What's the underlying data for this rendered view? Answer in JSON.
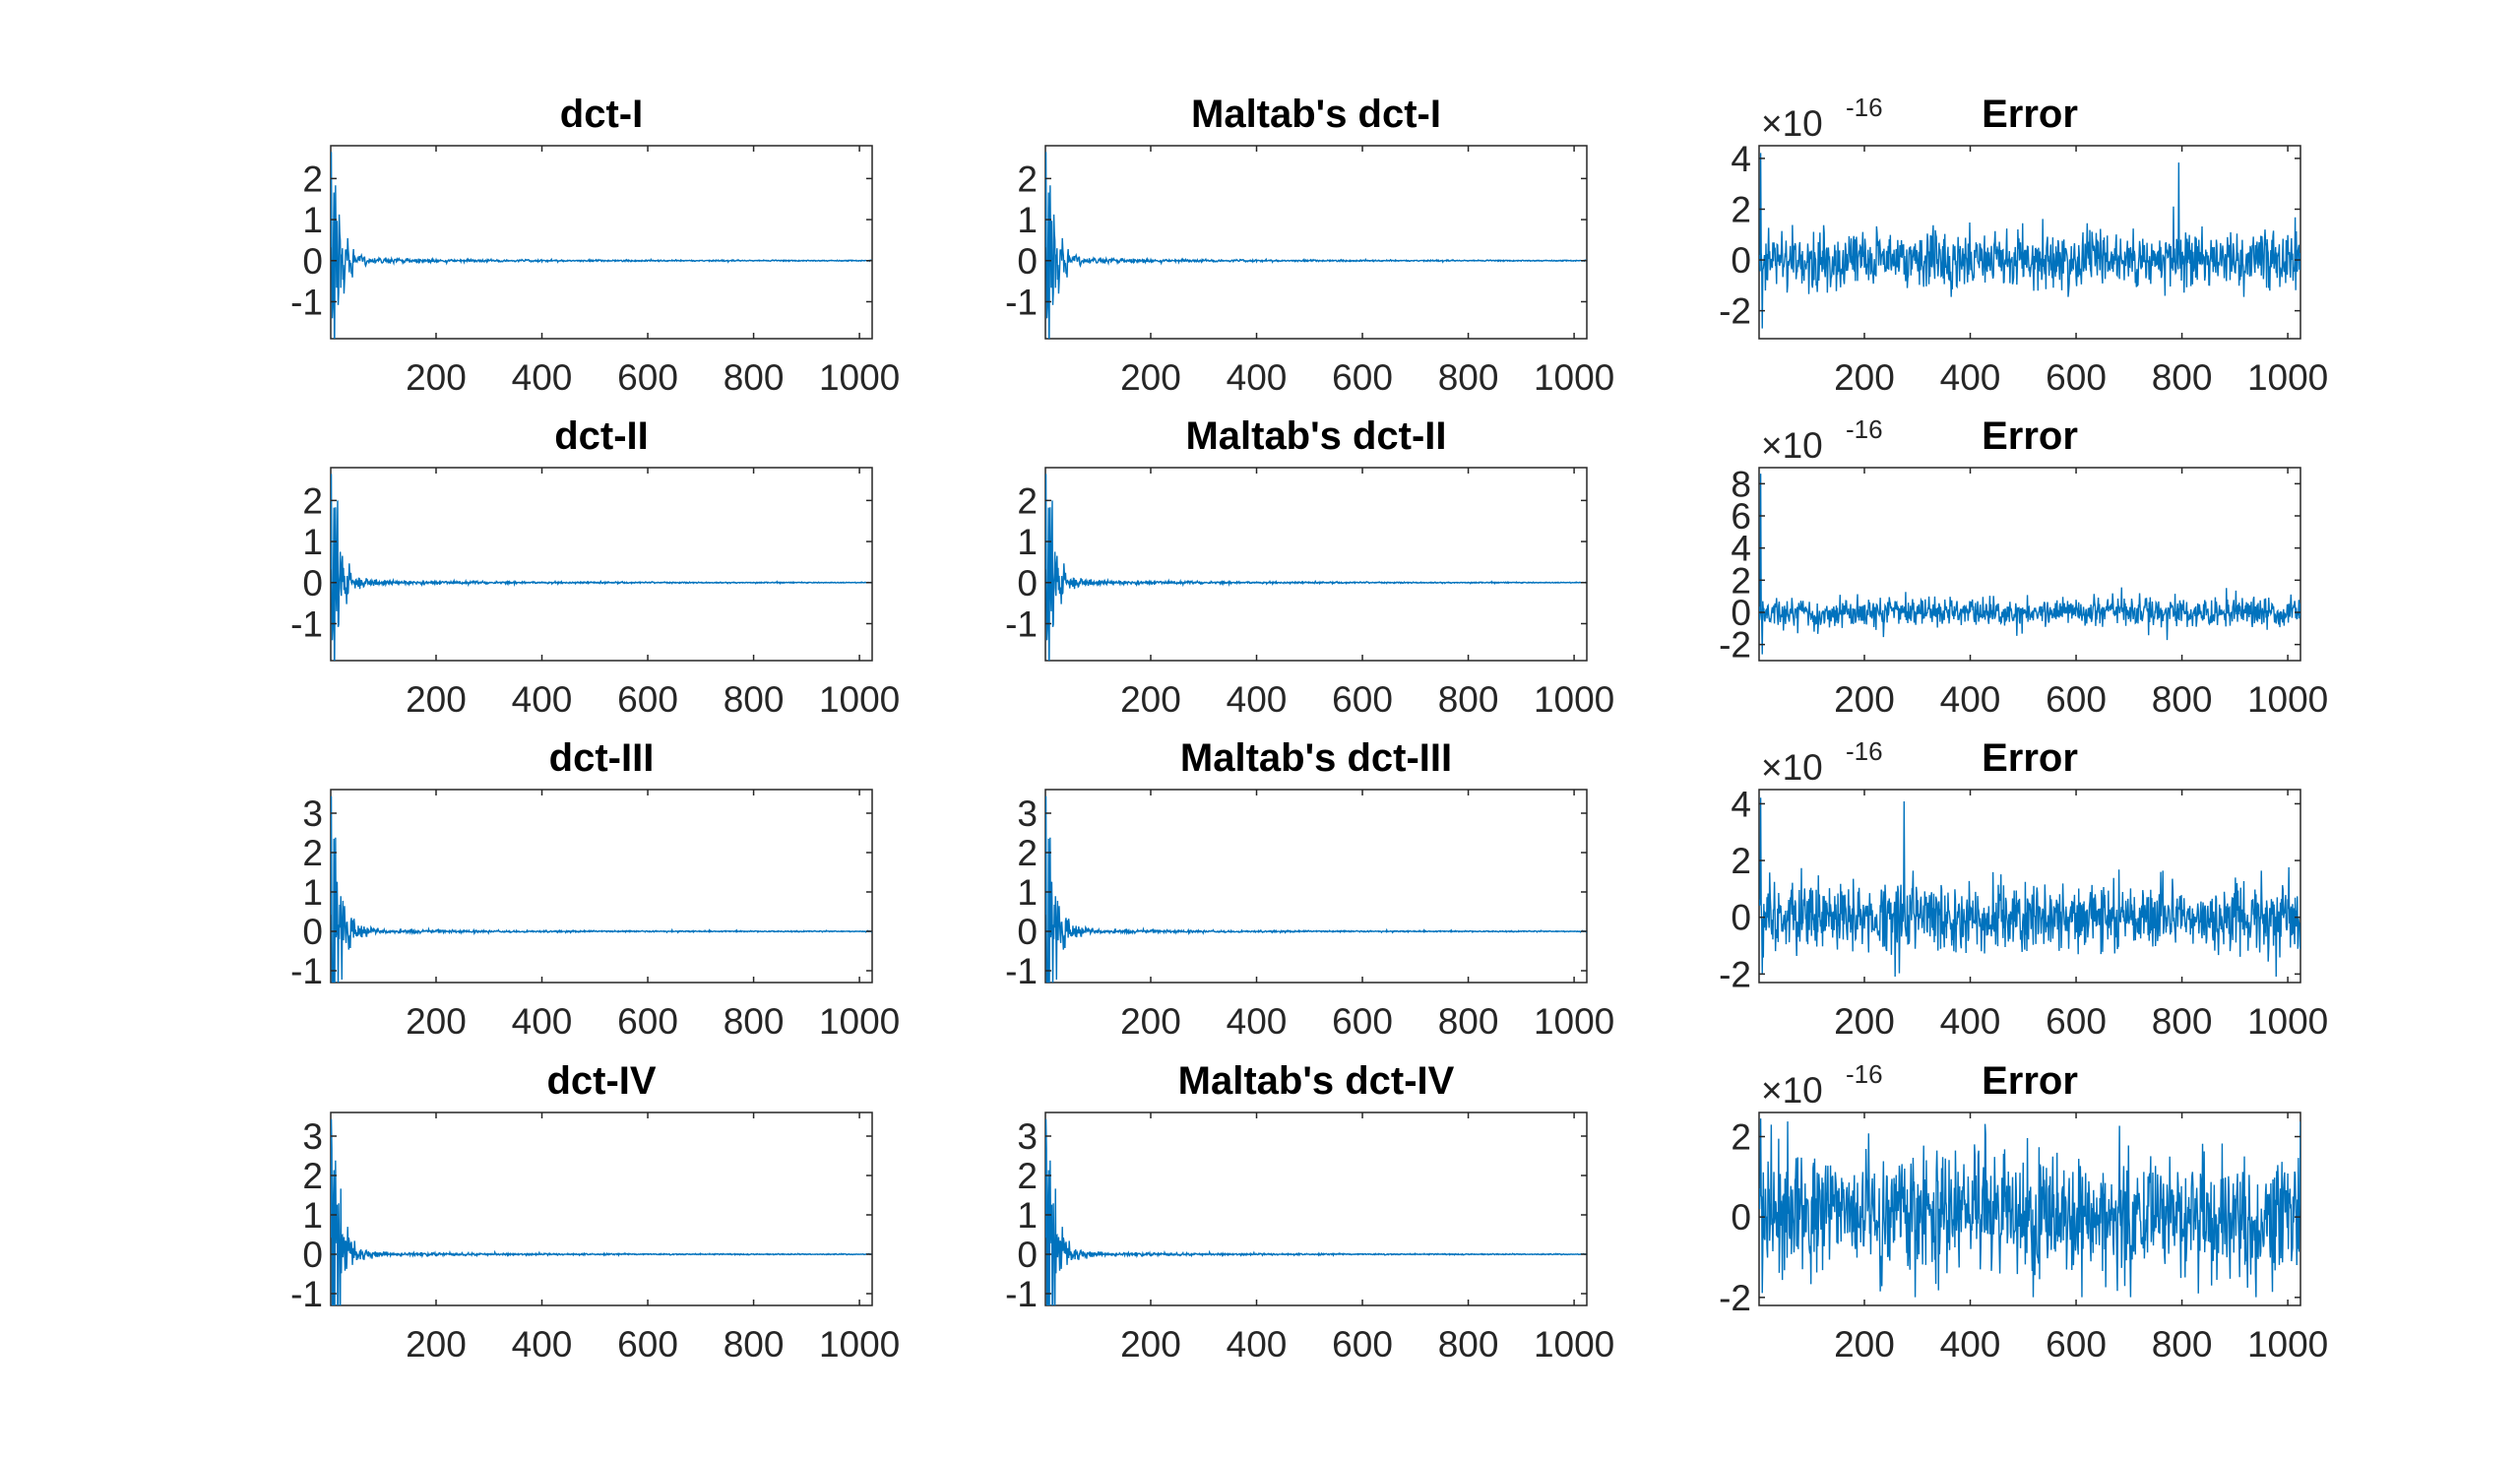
{
  "figure": {
    "rows": 4,
    "cols": 3
  },
  "chart_data": [
    {
      "type": "line",
      "title": "dct-I",
      "signal": "dct1",
      "xlim": [
        1,
        1024
      ],
      "ylim": [
        -1.9,
        2.8
      ],
      "xticks": [
        200,
        400,
        600,
        800,
        1000
      ],
      "xtick_labels": [
        "200",
        "400",
        "600",
        "800",
        "1000"
      ],
      "yticks": [
        -1,
        0,
        1,
        2
      ],
      "ytick_labels": [
        "-1",
        "0",
        "1",
        "2"
      ],
      "exponent": null,
      "series": [
        {
          "name": "dct-I",
          "amplitude_start": 2.7,
          "decay": 0.06,
          "tail": 0.01
        }
      ]
    },
    {
      "type": "line",
      "title": "Maltab's dct-I",
      "signal": "dct1",
      "xlim": [
        1,
        1024
      ],
      "ylim": [
        -1.9,
        2.8
      ],
      "xticks": [
        200,
        400,
        600,
        800,
        1000
      ],
      "xtick_labels": [
        "200",
        "400",
        "600",
        "800",
        "1000"
      ],
      "yticks": [
        -1,
        0,
        1,
        2
      ],
      "ytick_labels": [
        "-1",
        "0",
        "1",
        "2"
      ],
      "exponent": null,
      "series": [
        {
          "name": "Maltab's dct-I",
          "amplitude_start": 2.7,
          "decay": 0.06,
          "tail": 0.01
        }
      ]
    },
    {
      "type": "line",
      "title": "Error",
      "signal": "err1",
      "xlim": [
        1,
        1024
      ],
      "ylim": [
        -3.1,
        4.5
      ],
      "xticks": [
        200,
        400,
        600,
        800,
        1000
      ],
      "xtick_labels": [
        "200",
        "400",
        "600",
        "800",
        "1000"
      ],
      "yticks": [
        -2,
        0,
        2,
        4
      ],
      "ytick_labels": [
        "-2",
        "0",
        "2",
        "4"
      ],
      "exponent": {
        "base": "10",
        "power": "-16"
      },
      "series": [
        {
          "name": "Error",
          "scale": 0.55,
          "min": -3.0,
          "max": 4.3
        }
      ]
    },
    {
      "type": "line",
      "title": "dct-II",
      "signal": "dct2",
      "xlim": [
        1,
        1024
      ],
      "ylim": [
        -1.9,
        2.8
      ],
      "xticks": [
        200,
        400,
        600,
        800,
        1000
      ],
      "xtick_labels": [
        "200",
        "400",
        "600",
        "800",
        "1000"
      ],
      "yticks": [
        -1,
        0,
        1,
        2
      ],
      "ytick_labels": [
        "-1",
        "0",
        "1",
        "2"
      ],
      "exponent": null,
      "series": [
        {
          "name": "dct-II",
          "amplitude_start": 2.7,
          "decay": 0.06,
          "tail": 0.01
        }
      ]
    },
    {
      "type": "line",
      "title": "Maltab's dct-II",
      "signal": "dct2",
      "xlim": [
        1,
        1024
      ],
      "ylim": [
        -1.9,
        2.8
      ],
      "xticks": [
        200,
        400,
        600,
        800,
        1000
      ],
      "xtick_labels": [
        "200",
        "400",
        "600",
        "800",
        "1000"
      ],
      "yticks": [
        -1,
        0,
        1,
        2
      ],
      "ytick_labels": [
        "-1",
        "0",
        "1",
        "2"
      ],
      "exponent": null,
      "series": [
        {
          "name": "Maltab's dct-II",
          "amplitude_start": 2.7,
          "decay": 0.06,
          "tail": 0.01
        }
      ]
    },
    {
      "type": "line",
      "title": "Error",
      "signal": "err2",
      "xlim": [
        1,
        1024
      ],
      "ylim": [
        -3,
        9
      ],
      "xticks": [
        200,
        400,
        600,
        800,
        1000
      ],
      "xtick_labels": [
        "200",
        "400",
        "600",
        "800",
        "1000"
      ],
      "yticks": [
        -2,
        0,
        2,
        4,
        6,
        8
      ],
      "ytick_labels": [
        "-2",
        "0",
        "2",
        "4",
        "6",
        "8"
      ],
      "exponent": {
        "base": "10",
        "power": "-16"
      },
      "series": [
        {
          "name": "Error",
          "scale": 0.45,
          "min": -2.9,
          "max": 8.8
        }
      ]
    },
    {
      "type": "line",
      "title": "dct-III",
      "signal": "dct3",
      "xlim": [
        1,
        1024
      ],
      "ylim": [
        -1.3,
        3.6
      ],
      "xticks": [
        200,
        400,
        600,
        800,
        1000
      ],
      "xtick_labels": [
        "200",
        "400",
        "600",
        "800",
        "1000"
      ],
      "yticks": [
        -1,
        0,
        1,
        2,
        3
      ],
      "ytick_labels": [
        "-1",
        "0",
        "1",
        "2",
        "3"
      ],
      "exponent": null,
      "series": [
        {
          "name": "dct-III",
          "amplitude_start": 3.5,
          "decay": 0.06,
          "tail": 0.01
        }
      ]
    },
    {
      "type": "line",
      "title": "Maltab's dct-III",
      "signal": "dct3",
      "xlim": [
        1,
        1024
      ],
      "ylim": [
        -1.3,
        3.6
      ],
      "xticks": [
        200,
        400,
        600,
        800,
        1000
      ],
      "xtick_labels": [
        "200",
        "400",
        "600",
        "800",
        "1000"
      ],
      "yticks": [
        -1,
        0,
        1,
        2,
        3
      ],
      "ytick_labels": [
        "-1",
        "0",
        "1",
        "2",
        "3"
      ],
      "exponent": null,
      "series": [
        {
          "name": "Maltab's dct-III",
          "amplitude_start": 3.5,
          "decay": 0.06,
          "tail": 0.01
        }
      ]
    },
    {
      "type": "line",
      "title": "Error",
      "signal": "err3",
      "xlim": [
        1,
        1024
      ],
      "ylim": [
        -2.3,
        4.5
      ],
      "xticks": [
        200,
        400,
        600,
        800,
        1000
      ],
      "xtick_labels": [
        "200",
        "400",
        "600",
        "800",
        "1000"
      ],
      "yticks": [
        -2,
        0,
        2,
        4
      ],
      "ytick_labels": [
        "-2",
        "0",
        "2",
        "4"
      ],
      "exponent": {
        "base": "10",
        "power": "-16"
      },
      "series": [
        {
          "name": "Error",
          "scale": 0.6,
          "min": -2.2,
          "max": 4.3
        }
      ]
    },
    {
      "type": "line",
      "title": "dct-IV",
      "signal": "dct4",
      "xlim": [
        1,
        1024
      ],
      "ylim": [
        -1.3,
        3.6
      ],
      "xticks": [
        200,
        400,
        600,
        800,
        1000
      ],
      "xtick_labels": [
        "200",
        "400",
        "600",
        "800",
        "1000"
      ],
      "yticks": [
        -1,
        0,
        1,
        2,
        3
      ],
      "ytick_labels": [
        "-1",
        "0",
        "1",
        "2",
        "3"
      ],
      "exponent": null,
      "series": [
        {
          "name": "dct-IV",
          "amplitude_start": 3.5,
          "decay": 0.06,
          "tail": 0.01
        }
      ]
    },
    {
      "type": "line",
      "title": "Maltab's dct-IV",
      "signal": "dct4",
      "xlim": [
        1,
        1024
      ],
      "ylim": [
        -1.3,
        3.6
      ],
      "xticks": [
        200,
        400,
        600,
        800,
        1000
      ],
      "xtick_labels": [
        "200",
        "400",
        "600",
        "800",
        "1000"
      ],
      "yticks": [
        -1,
        0,
        1,
        2,
        3
      ],
      "ytick_labels": [
        "-1",
        "0",
        "1",
        "2",
        "3"
      ],
      "exponent": null,
      "series": [
        {
          "name": "Maltab's dct-IV",
          "amplitude_start": 3.5,
          "decay": 0.06,
          "tail": 0.01
        }
      ]
    },
    {
      "type": "line",
      "title": "Error",
      "signal": "err4",
      "xlim": [
        1,
        1024
      ],
      "ylim": [
        -2.2,
        2.6
      ],
      "xticks": [
        200,
        400,
        600,
        800,
        1000
      ],
      "xtick_labels": [
        "200",
        "400",
        "600",
        "800",
        "1000"
      ],
      "yticks": [
        -2,
        0,
        2
      ],
      "ytick_labels": [
        "-2",
        "0",
        "2"
      ],
      "exponent": {
        "base": "10",
        "power": "-16"
      },
      "series": [
        {
          "name": "Error",
          "scale": 0.75,
          "min": -2.1,
          "max": 2.5
        }
      ]
    }
  ],
  "colors": {
    "line": "#0072bd",
    "axes": "#262626",
    "background": "#ffffff"
  }
}
